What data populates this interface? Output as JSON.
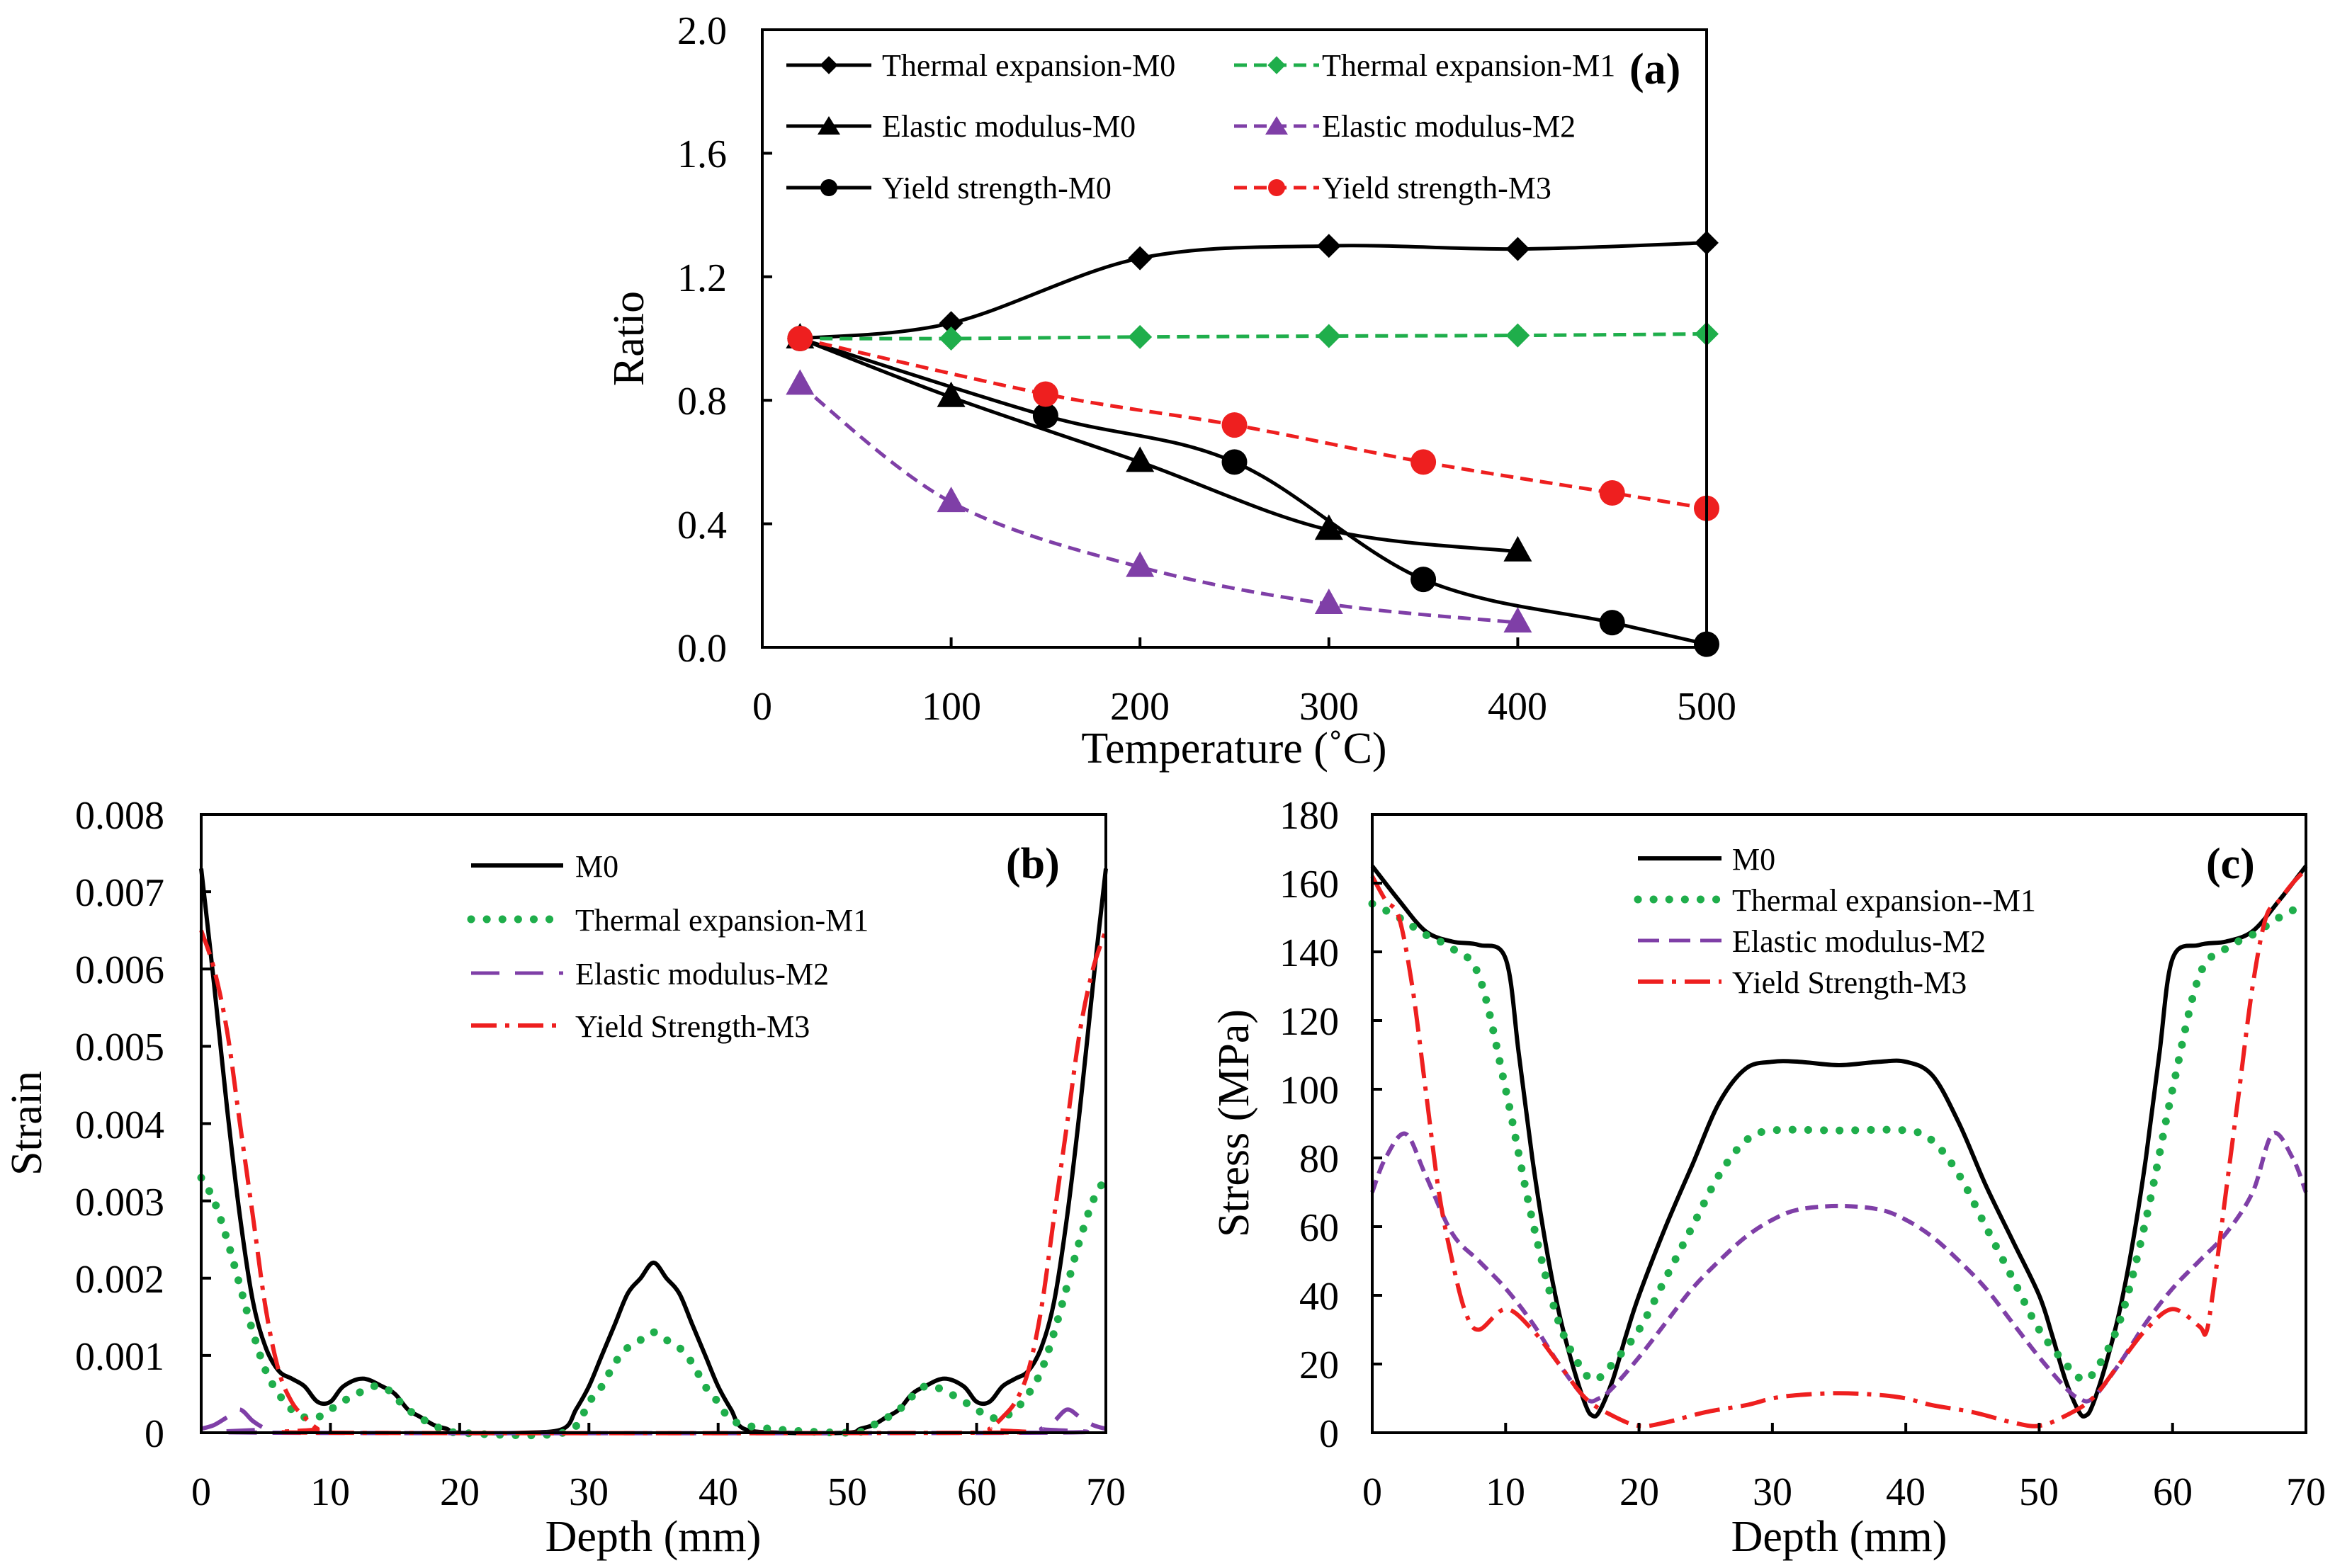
{
  "figure": {
    "colors": {
      "black": "#000000",
      "green": "#1fae4b",
      "purple": "#7f3fa7",
      "red": "#ee1f1f"
    }
  },
  "chart_data": [
    {
      "id": "a",
      "type": "line",
      "panel_label": "(a)",
      "xlabel": "Temperature (˚C)",
      "ylabel": "Ratio",
      "xlim": [
        0,
        500
      ],
      "ylim": [
        0,
        2.0
      ],
      "xticks": [
        "0",
        "100",
        "200",
        "300",
        "400",
        "500"
      ],
      "yticks": [
        "0.0",
        "0.4",
        "0.8",
        "1.2",
        "1.6",
        "2.0"
      ],
      "legend_position": "top",
      "series": [
        {
          "name": "Thermal expansion-M0",
          "color": "#000000",
          "dash": "solid",
          "marker": "diamond",
          "x": [
            20,
            100,
            200,
            300,
            400,
            500
          ],
          "y": [
            1.0,
            1.05,
            1.26,
            1.3,
            1.29,
            1.31
          ]
        },
        {
          "name": "Thermal expansion-M1",
          "color": "#1fae4b",
          "dash": "dashed",
          "marker": "diamond",
          "x": [
            20,
            100,
            200,
            300,
            400,
            500
          ],
          "y": [
            1.0,
            1.0,
            1.005,
            1.008,
            1.01,
            1.015
          ]
        },
        {
          "name": "Elastic modulus-M0",
          "color": "#000000",
          "dash": "solid",
          "marker": "triangle",
          "x": [
            20,
            100,
            200,
            300,
            400
          ],
          "y": [
            1.0,
            0.81,
            0.6,
            0.38,
            0.31
          ]
        },
        {
          "name": "Elastic modulus-M2",
          "color": "#7f3fa7",
          "dash": "dashed",
          "marker": "triangle",
          "x": [
            20,
            100,
            200,
            300,
            400
          ],
          "y": [
            0.85,
            0.47,
            0.26,
            0.14,
            0.08
          ]
        },
        {
          "name": "Yield strength-M0",
          "color": "#000000",
          "dash": "solid",
          "marker": "circle",
          "x": [
            20,
            150,
            250,
            350,
            450,
            500
          ],
          "y": [
            1.0,
            0.75,
            0.6,
            0.22,
            0.08,
            0.01
          ]
        },
        {
          "name": "Yield strength-M3",
          "color": "#ee1f1f",
          "dash": "dashed",
          "marker": "circle",
          "x": [
            20,
            150,
            250,
            350,
            450,
            500
          ],
          "y": [
            1.0,
            0.82,
            0.72,
            0.6,
            0.5,
            0.45
          ]
        }
      ]
    },
    {
      "id": "b",
      "type": "line",
      "panel_label": "(b)",
      "xlabel": "Depth (mm)",
      "ylabel": "Strain",
      "xlim": [
        0,
        70
      ],
      "ylim": [
        0,
        0.008
      ],
      "xticks": [
        "0",
        "10",
        "20",
        "30",
        "40",
        "50",
        "60",
        "70"
      ],
      "yticks": [
        "0",
        "0.001",
        "0.002",
        "0.003",
        "0.004",
        "0.005",
        "0.006",
        "0.007",
        "0.008"
      ],
      "legend_position": "top-center",
      "series": [
        {
          "name": "M0",
          "color": "#000000",
          "dash": "solid",
          "x": [
            0,
            1,
            2,
            3,
            4,
            5,
            6,
            7,
            8,
            9,
            10,
            11,
            12.5,
            14,
            15,
            16,
            17,
            18,
            19,
            20,
            25,
            28,
            29,
            30,
            31,
            32,
            33,
            34,
            35,
            36,
            37,
            38,
            39,
            40,
            41,
            42,
            45,
            50,
            51,
            52,
            53,
            54,
            55,
            56,
            57.5,
            59,
            60,
            61,
            62,
            63,
            64,
            65,
            66,
            67,
            68,
            69,
            70
          ],
          "y": [
            0.0073,
            0.0058,
            0.0042,
            0.0028,
            0.0017,
            0.0011,
            0.0008,
            0.0007,
            0.0006,
            0.0004,
            0.0004,
            0.0006,
            0.0007,
            0.0006,
            0.0005,
            0.0003,
            0.0002,
            0.0001,
            5e-05,
            0,
            0,
            5e-05,
            0.0003,
            0.0006,
            0.001,
            0.0014,
            0.0018,
            0.002,
            0.0022,
            0.002,
            0.0018,
            0.0014,
            0.001,
            0.0006,
            0.0003,
            5e-05,
            0,
            0,
            5e-05,
            0.0001,
            0.0002,
            0.0003,
            0.0005,
            0.0006,
            0.0007,
            0.0006,
            0.0004,
            0.0004,
            0.0006,
            0.0007,
            0.0008,
            0.0011,
            0.0017,
            0.0028,
            0.0042,
            0.0058,
            0.0073
          ]
        },
        {
          "name": "Thermal expansion-M1",
          "color": "#1fae4b",
          "dash": "dotted",
          "x": [
            0,
            1,
            2,
            3,
            4,
            5,
            6,
            7,
            8,
            9,
            10,
            12,
            14,
            16,
            18,
            20,
            28,
            30,
            31,
            32,
            33,
            34,
            35,
            36,
            37,
            38,
            39,
            40,
            42,
            50,
            52,
            54,
            56,
            58,
            60,
            61,
            62,
            63,
            64,
            65,
            66,
            67,
            68,
            69,
            70
          ],
          "y": [
            0.0033,
            0.003,
            0.0025,
            0.0019,
            0.0013,
            0.0008,
            0.0005,
            0.0003,
            0.0002,
            0.0002,
            0.0003,
            0.0005,
            0.0006,
            0.0003,
            0.0001,
            0,
            0,
            0.0004,
            0.0006,
            0.0009,
            0.0011,
            0.0012,
            0.0013,
            0.0012,
            0.0011,
            0.0009,
            0.0006,
            0.0004,
            0.0001,
            0,
            0.0001,
            0.0003,
            0.0006,
            0.0005,
            0.0003,
            0.0002,
            0.0002,
            0.0003,
            0.0005,
            0.0008,
            0.0013,
            0.0019,
            0.0025,
            0.003,
            0.0033
          ]
        },
        {
          "name": "Elastic modulus-M2",
          "color": "#7f3fa7",
          "dash": "longdash",
          "x": [
            0,
            1,
            2,
            3,
            4,
            5,
            6,
            64,
            65,
            66,
            67,
            68,
            69,
            70
          ],
          "y": [
            5e-05,
            0.0001,
            0.0002,
            0.0003,
            0.00015,
            5e-05,
            0,
            0,
            5e-05,
            0.00015,
            0.0003,
            0.0002,
            0.0001,
            5e-05
          ]
        },
        {
          "name": "Yield Strength-M3",
          "color": "#ee1f1f",
          "dash": "dashdot",
          "x": [
            0,
            1,
            2,
            3,
            4,
            5,
            6,
            7,
            8,
            9,
            10,
            60,
            61,
            62,
            63,
            64,
            65,
            66,
            67,
            68,
            69,
            70
          ],
          "y": [
            0.0065,
            0.006,
            0.0052,
            0.004,
            0.0028,
            0.0016,
            0.0008,
            0.0004,
            0.0002,
            5e-05,
            0,
            0,
            5e-05,
            0.0002,
            0.0004,
            0.0008,
            0.0016,
            0.0028,
            0.004,
            0.0052,
            0.006,
            0.0065
          ]
        }
      ]
    },
    {
      "id": "c",
      "type": "line",
      "panel_label": "(c)",
      "xlabel": "Depth (mm)",
      "ylabel": "Stress (MPa)",
      "xlim": [
        0,
        70
      ],
      "ylim": [
        0,
        180
      ],
      "xticks": [
        "0",
        "10",
        "20",
        "30",
        "40",
        "50",
        "60",
        "70"
      ],
      "yticks": [
        "0",
        "20",
        "40",
        "60",
        "80",
        "100",
        "120",
        "140",
        "160",
        "180"
      ],
      "legend_position": "top-center",
      "series": [
        {
          "name": "M0",
          "color": "#000000",
          "dash": "solid",
          "x": [
            0,
            2,
            4,
            6,
            8,
            10,
            11,
            12,
            13,
            14,
            15,
            16,
            16.5,
            17,
            18,
            19,
            20,
            22,
            24,
            26,
            28,
            30,
            32,
            35,
            38,
            40,
            42,
            44,
            46,
            48,
            50,
            51,
            52,
            53,
            53.5,
            54,
            55,
            56,
            57,
            58,
            59,
            60,
            62,
            64,
            66,
            68,
            70
          ],
          "y": [
            165,
            155,
            146,
            143,
            142,
            138,
            110,
            80,
            55,
            35,
            20,
            8,
            5,
            6,
            15,
            28,
            40,
            60,
            78,
            96,
            106,
            108,
            108,
            107,
            108,
            108,
            104,
            90,
            72,
            56,
            40,
            28,
            15,
            6,
            5,
            8,
            20,
            35,
            55,
            80,
            110,
            138,
            142,
            143,
            146,
            155,
            165
          ]
        },
        {
          "name": "Thermal expansion--M1",
          "color": "#1fae4b",
          "dash": "dotted",
          "x": [
            0,
            2,
            4,
            6,
            8,
            10,
            12,
            14,
            16,
            17,
            18,
            20,
            22,
            24,
            26,
            28,
            30,
            35,
            40,
            42,
            44,
            46,
            48,
            50,
            52,
            53,
            54,
            56,
            58,
            60,
            62,
            64,
            66,
            68,
            70
          ],
          "y": [
            154,
            150,
            145,
            141,
            133,
            100,
            62,
            32,
            17,
            16,
            20,
            30,
            45,
            60,
            75,
            85,
            88,
            88,
            88,
            85,
            75,
            60,
            45,
            30,
            20,
            16,
            17,
            32,
            62,
            100,
            133,
            141,
            145,
            150,
            154
          ]
        },
        {
          "name": "Elastic modulus-M2",
          "color": "#7f3fa7",
          "dash": "dashed",
          "x": [
            0,
            1,
            2.5,
            4,
            6,
            8,
            10,
            12,
            14,
            16,
            17,
            18,
            20,
            22,
            24,
            26,
            28,
            30,
            32,
            35,
            38,
            40,
            42,
            44,
            46,
            48,
            50,
            52,
            53,
            54,
            56,
            58,
            60,
            62,
            64,
            66,
            67.5,
            69,
            70
          ],
          "y": [
            70,
            80,
            87,
            75,
            58,
            50,
            42,
            32,
            20,
            10,
            10,
            13,
            22,
            32,
            42,
            50,
            57,
            62,
            65,
            66,
            65,
            62,
            57,
            50,
            42,
            32,
            22,
            13,
            10,
            10,
            20,
            32,
            42,
            50,
            58,
            70,
            87,
            80,
            70
          ]
        },
        {
          "name": "Yield Strength-M3",
          "color": "#ee1f1f",
          "dash": "dashdot",
          "x": [
            0,
            1,
            2,
            3,
            4,
            5,
            6,
            7,
            8,
            10,
            12,
            14,
            16,
            18,
            20,
            22,
            25,
            28,
            30,
            32,
            35,
            38,
            40,
            42,
            45,
            48,
            50,
            52,
            54,
            56,
            58,
            60,
            62,
            62.5,
            63,
            64,
            65,
            66,
            67,
            68,
            69,
            70
          ],
          "y": [
            162,
            155,
            150,
            130,
            100,
            70,
            50,
            35,
            30,
            36,
            30,
            20,
            10,
            5,
            2,
            3,
            6,
            8,
            10,
            11,
            11.5,
            11,
            10,
            8,
            6,
            3,
            2,
            5,
            10,
            20,
            30,
            36,
            31,
            29,
            40,
            70,
            100,
            130,
            150,
            155,
            160,
            164
          ]
        }
      ]
    }
  ]
}
